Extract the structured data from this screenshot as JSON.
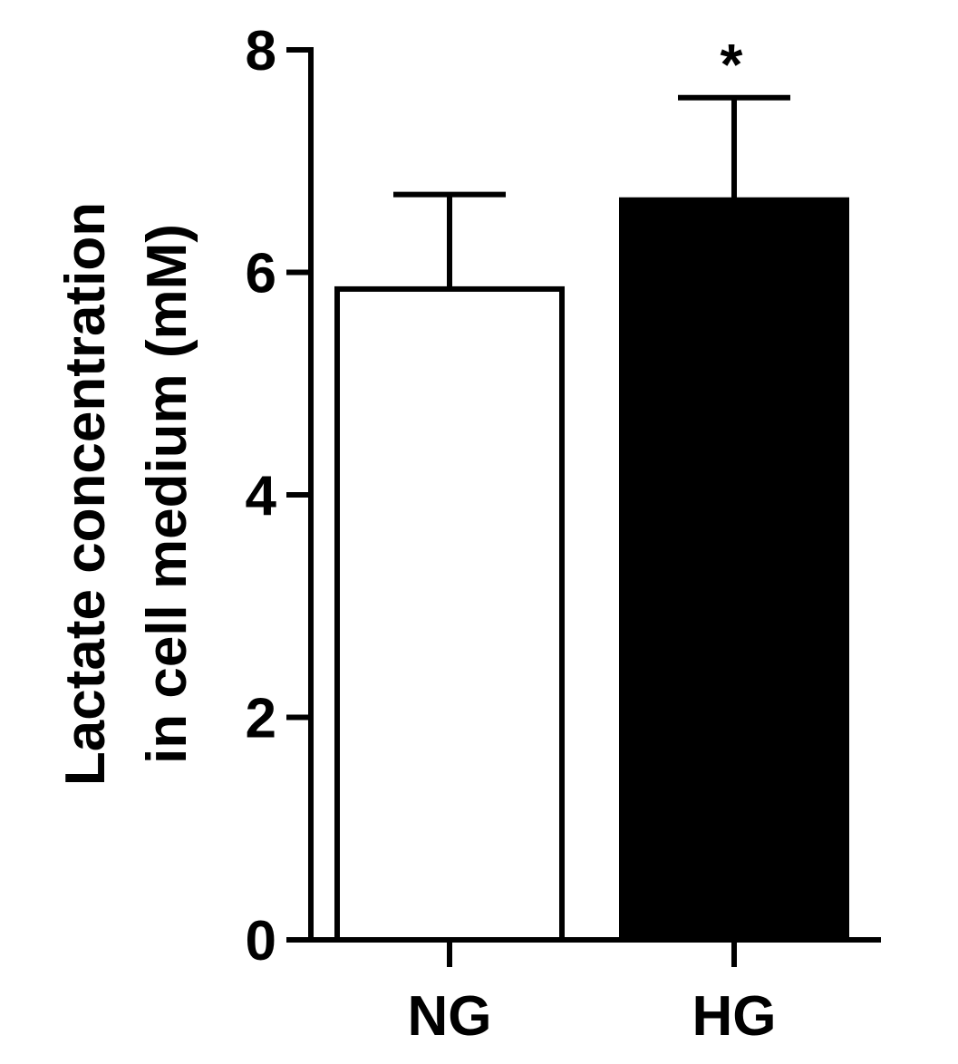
{
  "chart_data": {
    "type": "bar",
    "title": "",
    "xlabel": "",
    "ylabel": [
      "Lactate concentration",
      "in cell medium (mM)"
    ],
    "categories": [
      "NG",
      "HG"
    ],
    "values": [
      5.85,
      6.65
    ],
    "errors": [
      0.85,
      0.92
    ],
    "bar_fills": [
      "#ffffff",
      "#000000"
    ],
    "bar_strokes": [
      "#000000",
      "#000000"
    ],
    "ylim": [
      0,
      8
    ],
    "yticks": [
      0,
      2,
      4,
      6,
      8
    ],
    "ytick_labels": [
      "0",
      "2",
      "4",
      "6",
      "8"
    ],
    "annotations": [
      {
        "category": "HG",
        "text": "*"
      }
    ],
    "grid": false,
    "legend": "none"
  }
}
